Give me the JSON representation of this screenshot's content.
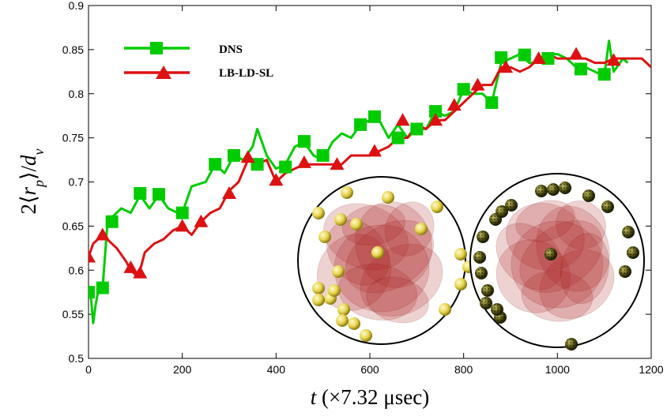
{
  "chart_data": {
    "type": "line",
    "xlabel": {
      "var": "t",
      "rest": " (×7.32 μsec)"
    },
    "ylabel": {
      "pre": "2⟨",
      "var": "r",
      "sub": "p",
      "mid": "⟩/",
      "var2": "d",
      "sub2": "v"
    },
    "xlim": [
      0,
      1200
    ],
    "ylim": [
      0.5,
      0.9
    ],
    "xticks": [
      0,
      200,
      400,
      600,
      800,
      1000,
      1200
    ],
    "yticks": [
      0.5,
      0.55,
      0.6,
      0.65,
      0.7,
      0.75,
      0.8,
      0.85,
      0.9
    ],
    "xtick_labels": [
      "0",
      "200",
      "400",
      "600",
      "800",
      "1000",
      "1200"
    ],
    "ytick_labels": [
      "0.5",
      "0.55",
      "0.6",
      "0.65",
      "0.7",
      "0.75",
      "0.8",
      "0.85",
      "0.9"
    ],
    "grid": false,
    "legend_position": "top-left",
    "series": [
      {
        "name": "DNS",
        "color": "#00cc00",
        "marker": "square",
        "x": [
          0,
          5,
          10,
          15,
          20,
          30,
          40,
          50,
          70,
          90,
          110,
          130,
          150,
          170,
          190,
          200,
          220,
          250,
          270,
          290,
          310,
          330,
          350,
          360,
          380,
          400,
          420,
          440,
          460,
          480,
          500,
          520,
          540,
          560,
          580,
          600,
          620,
          640,
          660,
          680,
          700,
          720,
          740,
          760,
          780,
          800,
          820,
          840,
          860,
          880,
          900,
          920,
          940,
          960,
          980,
          1000,
          1020,
          1040,
          1060,
          1080,
          1100,
          1110,
          1120,
          1140,
          1150
        ],
        "y": [
          0.575,
          0.57,
          0.54,
          0.56,
          0.575,
          0.58,
          0.65,
          0.66,
          0.67,
          0.665,
          0.685,
          0.67,
          0.685,
          0.67,
          0.665,
          0.665,
          0.695,
          0.7,
          0.72,
          0.71,
          0.73,
          0.725,
          0.74,
          0.76,
          0.73,
          0.715,
          0.72,
          0.74,
          0.745,
          0.73,
          0.725,
          0.745,
          0.755,
          0.75,
          0.765,
          0.77,
          0.77,
          0.75,
          0.765,
          0.75,
          0.76,
          0.76,
          0.78,
          0.775,
          0.78,
          0.805,
          0.8,
          0.8,
          0.79,
          0.835,
          0.84,
          0.845,
          0.835,
          0.835,
          0.845,
          0.845,
          0.84,
          0.83,
          0.83,
          0.825,
          0.82,
          0.86,
          0.825,
          0.84,
          0.835
        ],
        "markers_x": [
          0,
          30,
          50,
          110,
          150,
          200,
          270,
          310,
          360,
          420,
          460,
          500,
          580,
          610,
          660,
          700,
          740,
          800,
          860,
          880,
          930,
          980,
          1050,
          1100
        ],
        "markers_y": [
          0.575,
          0.58,
          0.655,
          0.687,
          0.686,
          0.665,
          0.72,
          0.73,
          0.72,
          0.717,
          0.746,
          0.73,
          0.765,
          0.774,
          0.75,
          0.76,
          0.78,
          0.805,
          0.79,
          0.841,
          0.844,
          0.84,
          0.828,
          0.822
        ]
      },
      {
        "name": "LB-LD-SL",
        "color": "#dd1111",
        "marker": "triangle",
        "x": [
          0,
          10,
          20,
          30,
          40,
          60,
          80,
          90,
          100,
          110,
          120,
          140,
          160,
          180,
          200,
          220,
          240,
          260,
          280,
          300,
          320,
          340,
          360,
          380,
          400,
          420,
          440,
          460,
          480,
          500,
          520,
          540,
          560,
          580,
          600,
          620,
          640,
          660,
          680,
          700,
          720,
          740,
          760,
          780,
          800,
          820,
          840,
          860,
          880,
          900,
          920,
          940,
          960,
          980,
          1000,
          1020,
          1040,
          1060,
          1080,
          1100,
          1120,
          1140,
          1160,
          1180,
          1200
        ],
        "y": [
          0.615,
          0.63,
          0.635,
          0.64,
          0.635,
          0.625,
          0.61,
          0.6,
          0.595,
          0.6,
          0.62,
          0.63,
          0.635,
          0.645,
          0.65,
          0.64,
          0.655,
          0.665,
          0.67,
          0.69,
          0.7,
          0.725,
          0.72,
          0.725,
          0.7,
          0.71,
          0.715,
          0.72,
          0.72,
          0.72,
          0.72,
          0.72,
          0.73,
          0.73,
          0.73,
          0.735,
          0.74,
          0.75,
          0.75,
          0.765,
          0.76,
          0.77,
          0.77,
          0.78,
          0.79,
          0.8,
          0.81,
          0.81,
          0.83,
          0.83,
          0.825,
          0.83,
          0.84,
          0.845,
          0.84,
          0.84,
          0.84,
          0.84,
          0.835,
          0.835,
          0.84,
          0.84,
          0.84,
          0.84,
          0.83
        ],
        "markers_x": [
          0,
          30,
          90,
          110,
          200,
          240,
          300,
          340,
          400,
          460,
          530,
          610,
          670,
          740,
          780,
          830,
          890,
          960,
          1040,
          1120
        ],
        "markers_y": [
          0.615,
          0.64,
          0.603,
          0.597,
          0.65,
          0.655,
          0.687,
          0.728,
          0.702,
          0.722,
          0.72,
          0.735,
          0.77,
          0.77,
          0.787,
          0.81,
          0.83,
          0.84,
          0.845,
          0.838
        ]
      }
    ]
  },
  "inset": {
    "left_particle_color": "#e6d24a",
    "right_particle_color": "#4a4a10",
    "blob_color": "#a82020"
  }
}
